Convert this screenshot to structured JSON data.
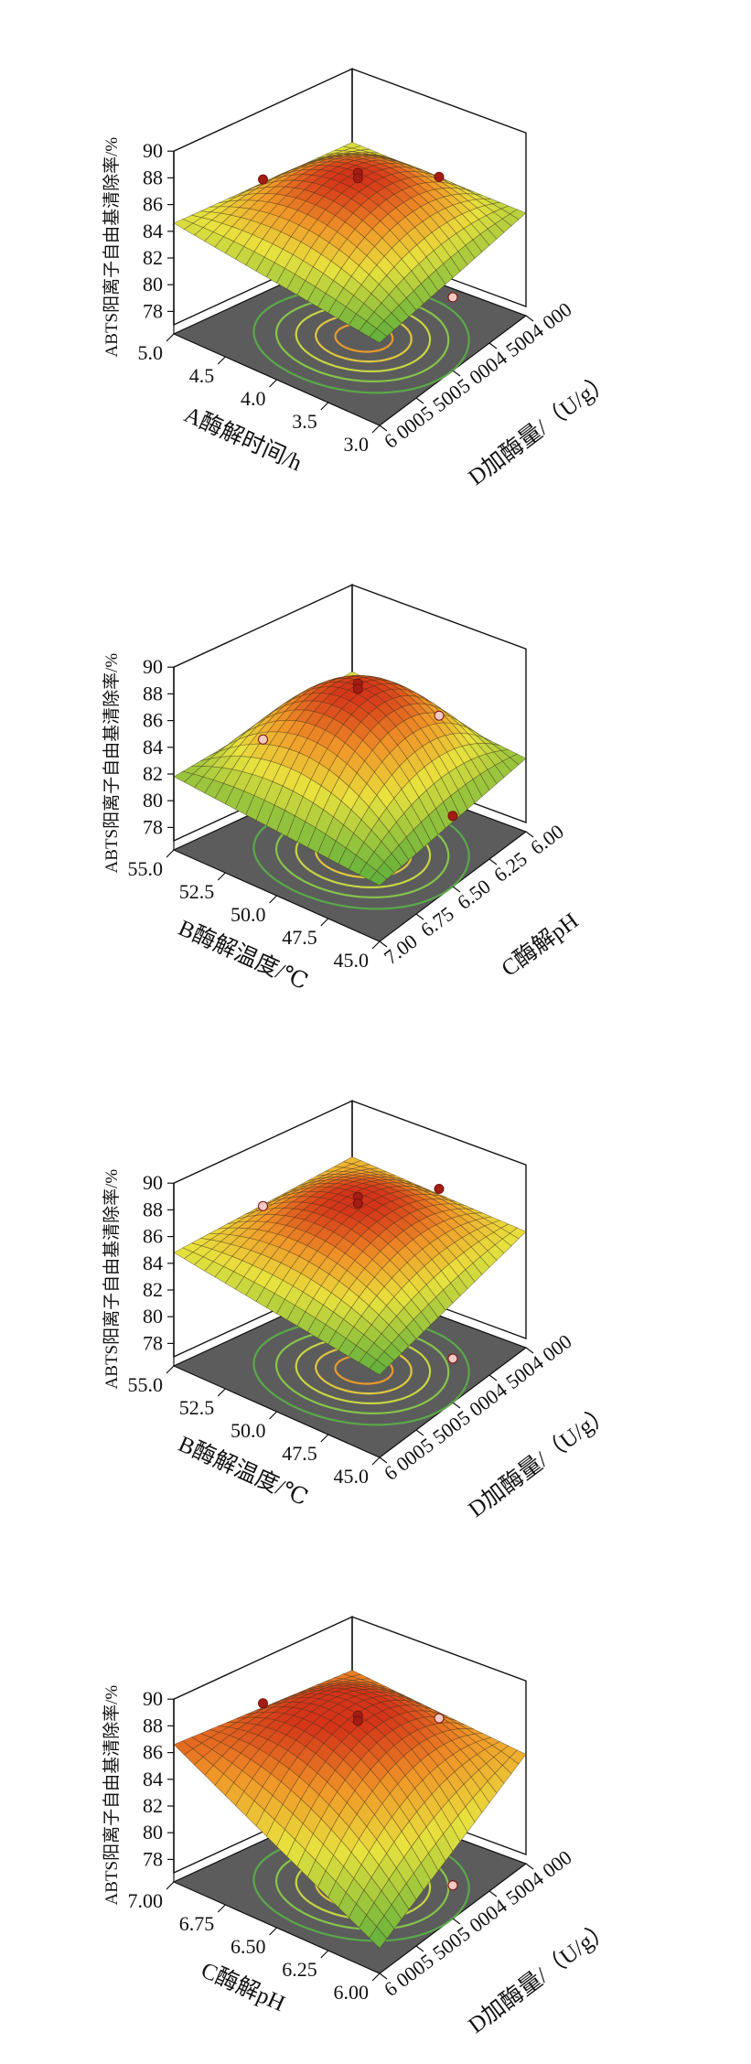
{
  "chart_data": [
    {
      "type": "surface",
      "z_label": "ABTS阳离子自由基清除率/%",
      "z_ticks": [
        "78",
        "80",
        "82",
        "84",
        "86",
        "88",
        "90"
      ],
      "zlim": [
        77,
        90
      ],
      "x_axis": {
        "label": "A酶解时间/h",
        "ticks": [
          "5.0",
          "4.5",
          "4.0",
          "3.5",
          "3.0"
        ],
        "range": [
          5.0,
          3.0
        ]
      },
      "y_axis": {
        "label": "D加酶量/（U/g）",
        "ticks": [
          "4 000",
          "4 500",
          "5 000",
          "5 500",
          "6 000"
        ],
        "range": [
          4000,
          6000
        ]
      },
      "surface": {
        "peak": 87.6,
        "corner_back": 84.5,
        "corner_right": 84.0,
        "corner_left": 84.6,
        "corner_front": 82.5
      },
      "points": [
        {
          "x": 4.0,
          "y": 5000,
          "z": 88.2
        },
        {
          "x": 4.0,
          "y": 5000,
          "z": 87.8
        },
        {
          "x": 3.0,
          "y": 5000,
          "z": 81.8
        },
        {
          "x": 5.0,
          "y": 5000,
          "z": 84.8
        },
        {
          "x": 4.0,
          "y": 4000,
          "z": 84.3
        }
      ]
    },
    {
      "type": "surface",
      "z_label": "ABTS阳离子自由基清除率/%",
      "z_ticks": [
        "78",
        "80",
        "82",
        "84",
        "86",
        "88",
        "90"
      ],
      "zlim": [
        77,
        90
      ],
      "x_axis": {
        "label": "B酶解温度/℃",
        "ticks": [
          "55.0",
          "52.5",
          "50.0",
          "47.5",
          "45.0"
        ],
        "range": [
          55.0,
          45.0
        ]
      },
      "y_axis": {
        "label": "C酶解pH",
        "ticks": [
          "6.00",
          "6.25",
          "6.50",
          "6.75",
          "7.00"
        ],
        "range": [
          6.0,
          7.0
        ]
      },
      "surface": {
        "peak": 87.8,
        "corner_back": 83.5,
        "corner_right": 81.8,
        "corner_left": 81.8,
        "corner_front": 80.5
      },
      "points": [
        {
          "x": 50.0,
          "y": 6.5,
          "z": 88.6
        },
        {
          "x": 50.0,
          "y": 6.5,
          "z": 88.2
        },
        {
          "x": 45.0,
          "y": 6.5,
          "z": 81.6
        },
        {
          "x": 55.0,
          "y": 6.5,
          "z": 81.5
        },
        {
          "x": 50.0,
          "y": 6.0,
          "z": 82.6
        }
      ]
    },
    {
      "type": "surface",
      "z_label": "ABTS阳离子自由基清除率/%",
      "z_ticks": [
        "78",
        "80",
        "82",
        "84",
        "86",
        "88",
        "90"
      ],
      "zlim": [
        77,
        90
      ],
      "x_axis": {
        "label": "B酶解温度/℃",
        "ticks": [
          "55.0",
          "52.5",
          "50.0",
          "47.5",
          "45.0"
        ],
        "range": [
          55.0,
          45.0
        ]
      },
      "y_axis": {
        "label": "D加酶量/（U/g）",
        "ticks": [
          "4 000",
          "4 500",
          "5 000",
          "5 500",
          "6 000"
        ],
        "range": [
          4000,
          6000
        ]
      },
      "surface": {
        "peak": 87.8,
        "corner_back": 85.8,
        "corner_right": 85.0,
        "corner_left": 84.8,
        "corner_front": 82.5
      },
      "points": [
        {
          "x": 50.0,
          "y": 5000,
          "z": 88.8
        },
        {
          "x": 50.0,
          "y": 5000,
          "z": 88.3
        },
        {
          "x": 45.0,
          "y": 5000,
          "z": 79.6
        },
        {
          "x": 55.0,
          "y": 5000,
          "z": 85.2
        },
        {
          "x": 50.0,
          "y": 4000,
          "z": 85.8
        }
      ]
    },
    {
      "type": "surface",
      "z_label": "ABTS阳离子自由基清除率/%",
      "z_ticks": [
        "78",
        "80",
        "82",
        "84",
        "86",
        "88",
        "90"
      ],
      "zlim": [
        77,
        90
      ],
      "x_axis": {
        "label": "C酶解pH",
        "ticks": [
          "7.00",
          "6.75",
          "6.50",
          "6.25",
          "6.00"
        ],
        "range": [
          7.0,
          6.0
        ]
      },
      "y_axis": {
        "label": "D加酶量/（U/g）",
        "ticks": [
          "4 000",
          "4 500",
          "5 000",
          "5 500",
          "6 000"
        ],
        "range": [
          4000,
          6000
        ]
      },
      "surface": {
        "peak": 87.8,
        "corner_back": 86.0,
        "corner_right": 84.5,
        "corner_left": 86.6,
        "corner_front": 78.2
      },
      "points": [
        {
          "x": 6.5,
          "y": 5000,
          "z": 88.6
        },
        {
          "x": 6.5,
          "y": 5000,
          "z": 88.2
        },
        {
          "x": 6.0,
          "y": 5000,
          "z": 78.8
        },
        {
          "x": 7.0,
          "y": 5000,
          "z": 86.6
        },
        {
          "x": 6.5,
          "y": 4000,
          "z": 84.8
        }
      ]
    }
  ]
}
